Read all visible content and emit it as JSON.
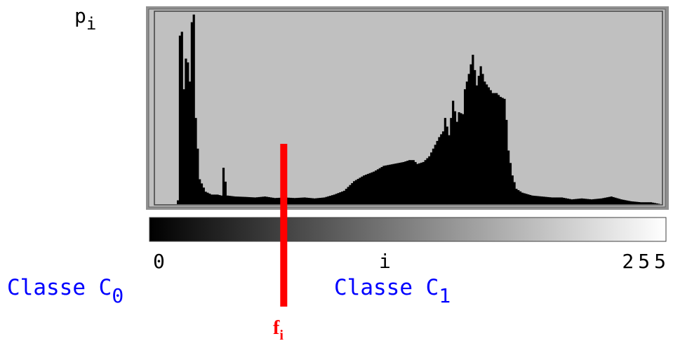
{
  "chart_data": {
    "type": "area",
    "ylabel": "p",
    "ylabel_sub": "i",
    "xlim": [
      0,
      255
    ],
    "x_ticks": [
      "0",
      "i",
      "255"
    ],
    "threshold_label": "f",
    "threshold_sub": "i",
    "threshold_x": 65,
    "class_left": "Classe C",
    "class_left_sub": "0",
    "class_right": "Classe C",
    "class_right_sub": "1",
    "colors": {
      "plot_bg": "#c0c0c0",
      "histogram": "#000000",
      "threshold": "#ff0000",
      "class_text": "#0000ff"
    },
    "x": [
      0,
      4,
      8,
      10,
      11,
      12,
      13,
      14,
      15,
      16,
      17,
      18,
      19,
      20,
      22,
      25,
      28,
      31,
      33,
      34,
      36,
      40,
      45,
      50,
      55,
      60,
      65,
      70,
      75,
      80,
      85,
      90,
      95,
      100,
      105,
      110,
      115,
      120,
      125,
      128,
      130,
      132,
      135,
      138,
      140,
      143,
      145,
      146,
      148,
      150,
      152,
      153,
      155,
      156,
      158,
      160,
      162,
      164,
      166,
      168,
      170,
      172,
      174,
      176,
      177,
      178,
      180,
      182,
      185,
      190,
      195,
      200,
      205,
      210,
      215,
      220,
      225,
      230,
      235,
      240,
      245,
      250,
      255
    ],
    "y": [
      0,
      0,
      0,
      0,
      2,
      88,
      90,
      60,
      76,
      74,
      64,
      95,
      99,
      45,
      13,
      6.5,
      5,
      5,
      4.5,
      19,
      4.5,
      4,
      3.8,
      3.5,
      4,
      3.2,
      3.5,
      3.2,
      3.5,
      3,
      3.5,
      5,
      7,
      12,
      15,
      17,
      20,
      21,
      22,
      23,
      23,
      21,
      22,
      25,
      29,
      35,
      38,
      45,
      36,
      54,
      43,
      48,
      47,
      60,
      68,
      78,
      62,
      72,
      64,
      61,
      58,
      58,
      56,
      55,
      44,
      28,
      15,
      8,
      6,
      4.5,
      4,
      3.5,
      3.5,
      2.5,
      3,
      2.5,
      3,
      4,
      2.5,
      1.5,
      1,
      1,
      0
    ]
  }
}
